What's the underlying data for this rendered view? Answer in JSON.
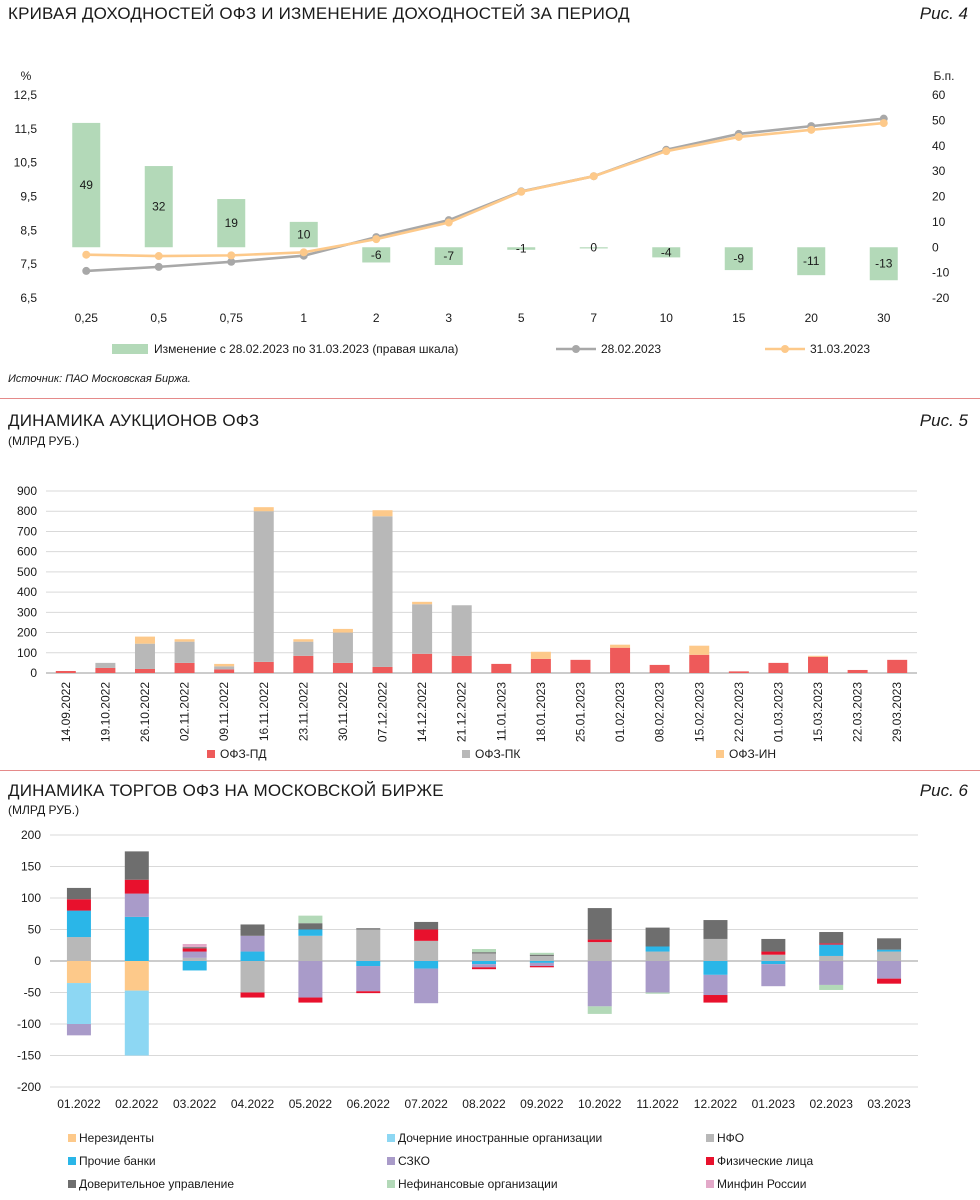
{
  "figures": [
    {
      "title": "КРИВАЯ ДОХОДНОСТЕЙ ОФЗ И ИЗМЕНЕНИЕ ДОХОДНОСТЕЙ ЗА ПЕРИОД",
      "figure_label": "Рис. 4",
      "source": "Источник: ПАО Московская Биржа.",
      "left_unit": "%",
      "right_unit": "Б.п.",
      "left_ticks": [
        "12,5",
        "11,5",
        "10,5",
        "9,5",
        "8,5",
        "7,5",
        "6,5"
      ],
      "right_ticks": [
        "60",
        "50",
        "40",
        "30",
        "20",
        "10",
        "0",
        "-10",
        "-20"
      ]
    },
    {
      "title": "ДИНАМИКА АУКЦИОНОВ ОФЗ",
      "subtitle": "(МЛРД РУБ.)",
      "figure_label": "Рис. 5"
    },
    {
      "title": "ДИНАМИКА ТОРГОВ ОФЗ НА МОСКОВСКОЙ БИРЖЕ",
      "subtitle": "(МЛРД РУБ.)",
      "figure_label": "Рис. 6"
    }
  ],
  "colors": {
    "change_bar": "#b3d9b8",
    "line_feb": "#a8a8a8",
    "line_mar": "#fdc98a",
    "pd": "#ee5a5a",
    "pk": "#b8b8b8",
    "in": "#fdc98a",
    "nonres": "#fdc98a",
    "foreign_sub": "#8dd7f3",
    "nfo": "#b8b8b8",
    "other_banks": "#2ab6e8",
    "szko": "#a99bc9",
    "individuals": "#e8112d",
    "trust": "#6e6e6e",
    "nonfin": "#b3d9b8",
    "minfin": "#e3a9c9"
  },
  "chart_data": [
    {
      "type": "bar+line",
      "categories": [
        "0,25",
        "0,5",
        "0,75",
        "1",
        "2",
        "3",
        "5",
        "7",
        "10",
        "15",
        "20",
        "30"
      ],
      "ylim": [
        6.5,
        12.5
      ],
      "ylim_right": [
        -20,
        60
      ],
      "series": [
        {
          "name": "Изменение с 28.02.2023 по 31.03.2023 (правая шкала)",
          "type": "bar",
          "axis": "right",
          "values": [
            49,
            32,
            19,
            10,
            -6,
            -7,
            -1,
            0,
            -4,
            -9,
            -11,
            -13
          ],
          "labels": [
            "49",
            "32",
            "19",
            "10",
            "-6",
            "-7",
            "-1",
            "0",
            "-4",
            "-9",
            "-11",
            "-13"
          ]
        },
        {
          "name": "28.02.2023",
          "type": "line",
          "axis": "left",
          "values": [
            7.3,
            7.42,
            7.57,
            7.75,
            8.3,
            8.8,
            9.65,
            10.1,
            10.88,
            11.35,
            11.58,
            11.8
          ]
        },
        {
          "name": "31.03.2023",
          "type": "line",
          "axis": "left",
          "values": [
            7.78,
            7.74,
            7.76,
            7.85,
            8.24,
            8.73,
            9.64,
            10.1,
            10.84,
            11.26,
            11.47,
            11.67
          ]
        }
      ]
    },
    {
      "type": "stacked-bar",
      "categories": [
        "14.09.2022",
        "19.10.2022",
        "26.10.2022",
        "02.11.2022",
        "09.11.2022",
        "16.11.2022",
        "23.11.2022",
        "30.11.2022",
        "07.12.2022",
        "14.12.2022",
        "21.12.2022",
        "11.01.2023",
        "18.01.2023",
        "25.01.2023",
        "01.02.2023",
        "08.02.2023",
        "15.02.2023",
        "22.02.2023",
        "01.03.2023",
        "15.03.2023",
        "22.03.2023",
        "29.03.2023"
      ],
      "ylim": [
        0,
        900
      ],
      "yticks": [
        "900",
        "800",
        "700",
        "600",
        "500",
        "400",
        "300",
        "200",
        "100",
        "0"
      ],
      "series": [
        {
          "name": "ОФЗ-ПД",
          "values": [
            10,
            25,
            20,
            50,
            18,
            55,
            85,
            50,
            30,
            95,
            85,
            45,
            70,
            65,
            125,
            40,
            90,
            8,
            50,
            80,
            15,
            65
          ]
        },
        {
          "name": "ОФЗ-ПК",
          "values": [
            0,
            25,
            125,
            105,
            15,
            745,
            70,
            150,
            745,
            245,
            250,
            0,
            0,
            0,
            0,
            0,
            0,
            0,
            0,
            0,
            0,
            0
          ]
        },
        {
          "name": "ОФЗ-ИН",
          "values": [
            0,
            0,
            35,
            12,
            12,
            20,
            12,
            18,
            30,
            12,
            0,
            0,
            35,
            0,
            15,
            0,
            45,
            0,
            0,
            5,
            0,
            0
          ]
        }
      ]
    },
    {
      "type": "stacked-bar",
      "categories": [
        "01.2022",
        "02.2022",
        "03.2022",
        "04.2022",
        "05.2022",
        "06.2022",
        "07.2022",
        "08.2022",
        "09.2022",
        "10.2022",
        "11.2022",
        "12.2022",
        "01.2023",
        "02.2023",
        "03.2023"
      ],
      "ylim": [
        -200,
        200
      ],
      "yticks": [
        "200",
        "150",
        "100",
        "50",
        "0",
        "-50",
        "-100",
        "-150",
        "-200"
      ],
      "series": [
        {
          "name": "Нерезиденты",
          "key": "nonres",
          "values": [
            -35,
            -47,
            0,
            0,
            0,
            0,
            0,
            0,
            0,
            0,
            0,
            0,
            0,
            0,
            0
          ]
        },
        {
          "name": "Дочерние иностранные организации",
          "key": "foreign_sub",
          "values": [
            -65,
            -103,
            0,
            0,
            0,
            0,
            0,
            0,
            0,
            0,
            0,
            0,
            0,
            0,
            0
          ]
        },
        {
          "name": "НФО",
          "key": "nfo",
          "values": [
            38,
            0,
            5,
            -50,
            40,
            50,
            32,
            12,
            8,
            30,
            15,
            35,
            10,
            8,
            15
          ]
        },
        {
          "name": "Прочие банки",
          "key": "other_banks",
          "values": [
            42,
            70,
            -15,
            15,
            10,
            -8,
            -12,
            -5,
            -3,
            0,
            8,
            -22,
            -5,
            18,
            3
          ]
        },
        {
          "name": "СЗКО",
          "key": "szko",
          "values": [
            -18,
            37,
            10,
            25,
            -58,
            -40,
            -55,
            -5,
            -5,
            -72,
            -50,
            -32,
            -35,
            -38,
            -28
          ]
        },
        {
          "name": "Физические лица",
          "key": "individuals",
          "values": [
            18,
            22,
            5,
            -8,
            -8,
            -3,
            18,
            -3,
            -2,
            4,
            0,
            -12,
            5,
            2,
            -8
          ]
        },
        {
          "name": "Доверительное управление",
          "key": "trust",
          "values": [
            18,
            45,
            2,
            18,
            10,
            2,
            12,
            2,
            2,
            50,
            30,
            30,
            20,
            18,
            18
          ]
        },
        {
          "name": "Нефинансовые организации",
          "key": "nonfin",
          "values": [
            0,
            0,
            0,
            0,
            12,
            0,
            0,
            5,
            3,
            -12,
            -2,
            0,
            0,
            -8,
            0
          ]
        },
        {
          "name": "Минфин России",
          "key": "minfin",
          "values": [
            0,
            0,
            5,
            0,
            0,
            0,
            0,
            0,
            0,
            0,
            0,
            0,
            0,
            0,
            0
          ]
        }
      ]
    }
  ]
}
